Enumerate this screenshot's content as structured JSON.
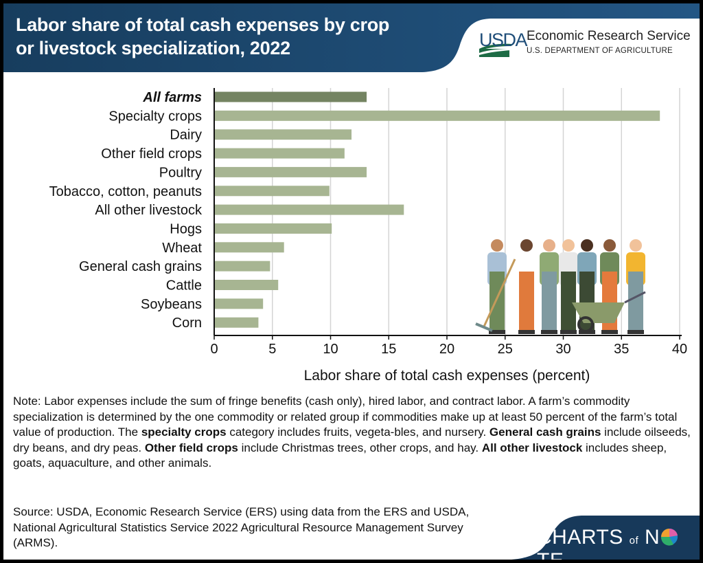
{
  "header": {
    "title_line1": "Labor share of total cash expenses by crop",
    "title_line2": "or livestock specialization, 2022",
    "logo_usda": "USDA",
    "logo_agency": "Economic Research Service",
    "logo_department": "U.S. DEPARTMENT OF AGRICULTURE"
  },
  "colors": {
    "header_blue": "#1b4a6e",
    "bar": "#a7b592",
    "bar_highlight": "#748462",
    "grid": "#d4d4d4"
  },
  "chart_data": {
    "type": "bar",
    "orientation": "horizontal",
    "categories": [
      "All farms",
      "Specialty crops",
      "Dairy",
      "Other field crops",
      "Poultry",
      "Tobacco, cotton, peanuts",
      "All other livestock",
      "Hogs",
      "Wheat",
      "General cash grains",
      "Cattle",
      "Soybeans",
      "Corn"
    ],
    "values": [
      13.1,
      38.3,
      11.8,
      11.2,
      13.1,
      9.9,
      16.3,
      10.1,
      6.0,
      4.8,
      5.5,
      4.2,
      3.8
    ],
    "highlight_category": "All farms",
    "xlabel": "Labor share of total cash expenses (percent)",
    "xlim": [
      0,
      40
    ],
    "xticks": [
      "0",
      "5",
      "10",
      "15",
      "20",
      "25",
      "30",
      "35",
      "40"
    ],
    "grid": "vertical"
  },
  "illustration": "farm-workers-group",
  "note": {
    "p1": "Note: Labor expenses include the sum of fringe benefits (cash only), hired labor, and contract labor. A farm’s commodity specialization is determined by the one commodity or related group if commodities make up at least 50 percent of the farm’s total value of production. The ",
    "b1": "specialty crops",
    "p2": " category includes fruits, vegeta-bles, and nursery. ",
    "b2": "General cash grains",
    "p3": " include oilseeds, dry beans, and dry peas. ",
    "b3": "Other field crops",
    "p4": " include Christmas trees, other crops, and hay. ",
    "b4": "All other livestock",
    "p5": " includes sheep, goats, aquaculture, and other animals."
  },
  "source": "Source: USDA, Economic Research Service (ERS) using data from the ERS and USDA, National Agricultural Statistics Service 2022 Agricultural Resource Management Survey (ARMS).",
  "footer": {
    "brand_a": "CHARTS",
    "brand_of": "of",
    "brand_n": "N",
    "brand_te": "TE"
  }
}
